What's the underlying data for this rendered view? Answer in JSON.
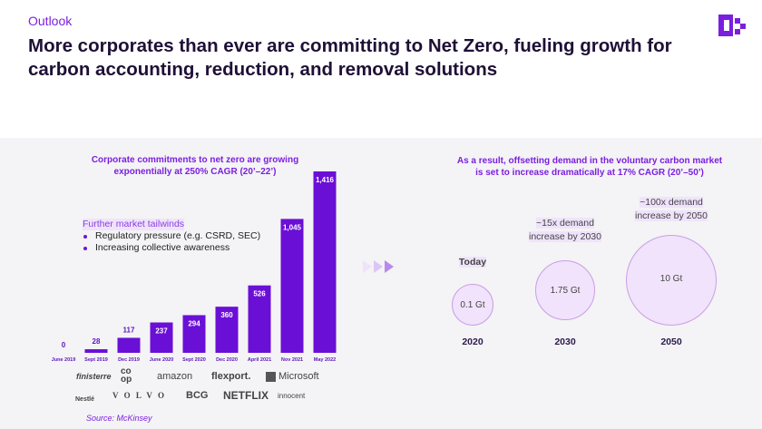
{
  "header": {
    "eyebrow": "Outlook",
    "title": "More corporates than ever are committing to Net Zero, fueling growth for carbon accounting, reduction, and removal solutions"
  },
  "left": {
    "title_line1": "Corporate commitments to net zero are growing",
    "title_line2": "exponentially at 250% CAGR (20’–22’)",
    "tailwinds": {
      "heading": "Further market tailwinds",
      "items": [
        "Regulatory pressure (e.g. CSRD, SEC)",
        "Increasing collective awareness"
      ]
    },
    "logos": [
      "finisterre",
      "co op",
      "amazon",
      "flexport.",
      "Microsoft",
      "Nestlé",
      "V O L V O",
      "BCG",
      "NETFLIX",
      "innocent"
    ],
    "source": "Source: McKinsey"
  },
  "chart_data": {
    "type": "bar",
    "title": "Corporate commitments to net zero are growing exponentially at 250% CAGR (20’–22’)",
    "categories": [
      "June 2019",
      "Sept 2019",
      "Dec 2019",
      "June 2020",
      "Sept 2020",
      "Dec 2020",
      "April 2021",
      "Nov 2021",
      "May 2022"
    ],
    "values": [
      0,
      28,
      117,
      237,
      294,
      360,
      526,
      1045,
      1416
    ],
    "value_labels": [
      "0",
      "28",
      "117",
      "237",
      "294",
      "360",
      "526",
      "1,045",
      "1,416"
    ],
    "ylim": [
      0,
      1416
    ],
    "color": "#6a0fd6"
  },
  "right": {
    "title_line1": "As a result, offsetting demand in the voluntary carbon market",
    "title_line2": "is set to increase dramatically at 17% CAGR (20’–50’)",
    "bubbles": [
      {
        "year": "2020",
        "value": "0.1 Gt",
        "note1": "Today",
        "note2": ""
      },
      {
        "year": "2030",
        "value": "1.75 Gt",
        "note1": "~15x demand",
        "note2": "increase by 2030"
      },
      {
        "year": "2050",
        "value": "10 Gt",
        "note1": "~100x demand",
        "note2": "increase by 2050"
      }
    ]
  }
}
